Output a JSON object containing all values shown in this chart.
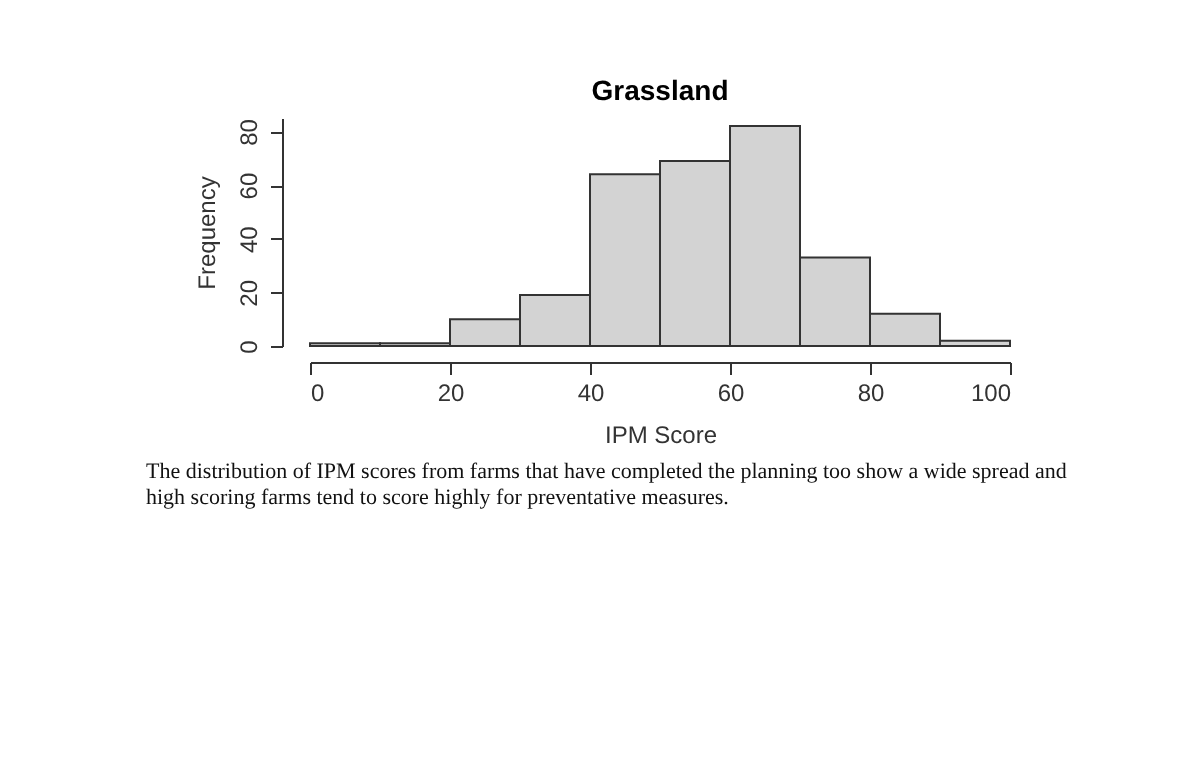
{
  "chart_data": {
    "type": "histogram",
    "title": "Grassland",
    "xlabel": "IPM Score",
    "ylabel": "Frequency",
    "bins": [
      0,
      10,
      20,
      30,
      40,
      50,
      60,
      70,
      80,
      90,
      100
    ],
    "values": [
      1,
      1,
      10,
      19,
      64,
      69,
      82,
      33,
      12,
      2
    ],
    "color": "#d3d3d3",
    "xlim": [
      0,
      100
    ],
    "xticks": [
      0,
      20,
      40,
      60,
      80,
      100
    ],
    "ylim": [
      0,
      85
    ],
    "yticks": [
      0,
      20,
      40,
      60,
      80
    ],
    "grid": false,
    "annotations": [
      "The distribution of IPM scores from farms that have completed the planning too show a wide spread and high scoring farms tend to score highly for preventative measures."
    ]
  }
}
